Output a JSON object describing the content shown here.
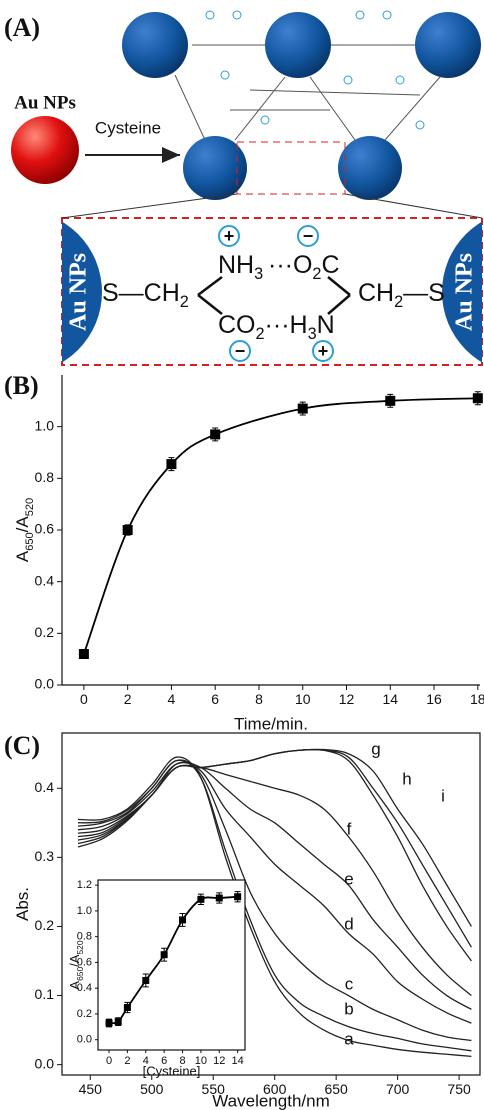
{
  "panel_a": {
    "label": "(A)",
    "reagent_label": "Au NPs",
    "arrow_label": "Cysteine",
    "inset_left_label": "Au NPs",
    "inset_right_label": "Au NPs",
    "molecule": {
      "left": [
        "S—CH",
        "2"
      ],
      "amine": [
        "NH",
        "3"
      ],
      "carboxylate_top": [
        "···O",
        "2",
        "C"
      ],
      "bottom": [
        "CO",
        "2",
        "···H",
        "3",
        "N"
      ],
      "right": [
        "CH",
        "2",
        "—S"
      ],
      "charges": [
        "+",
        "−",
        "−",
        "+"
      ]
    }
  },
  "chart_data": [
    {
      "type": "line",
      "label": "(B)",
      "xlabel": "Time/min.",
      "ylabel": [
        "A",
        "650",
        "/A",
        "520"
      ],
      "x": [
        0,
        2,
        4,
        6,
        10,
        14,
        18
      ],
      "series": [
        {
          "color": "#000000",
          "values": [
            0.12,
            0.6,
            0.855,
            0.97,
            1.07,
            1.1,
            1.11
          ],
          "errors": [
            0.015,
            0.02,
            0.025,
            0.025,
            0.025,
            0.025,
            0.025
          ]
        }
      ],
      "markers": "square",
      "box": false,
      "xlim": [
        -1,
        18.1
      ],
      "ylim": [
        0,
        1.2
      ],
      "xticks": [
        0,
        2,
        4,
        6,
        8,
        10,
        12,
        14,
        16,
        18
      ],
      "yticks": [
        {
          "value": 0,
          "label": "0.0"
        },
        0.2,
        0.4,
        0.6,
        0.8,
        {
          "value": 1,
          "label": "1.0"
        }
      ]
    },
    {
      "type": "line",
      "label": "(C)",
      "xlabel": "Wavelength/nm",
      "ylabel": [
        "Abs."
      ],
      "x": [
        440,
        460,
        480,
        500,
        520,
        540,
        560,
        580,
        600,
        620,
        640,
        660,
        680,
        700,
        720,
        740,
        760
      ],
      "series": [
        {
          "name": "a",
          "color": "#222222",
          "values": [
            0.355,
            0.355,
            0.37,
            0.405,
            0.445,
            0.415,
            0.3,
            0.2,
            0.12,
            0.075,
            0.05,
            0.035,
            0.028,
            0.022,
            0.018,
            0.015,
            0.012
          ]
        },
        {
          "name": "b",
          "color": "#222222",
          "values": [
            0.35,
            0.352,
            0.368,
            0.4,
            0.44,
            0.415,
            0.31,
            0.21,
            0.13,
            0.09,
            0.07,
            0.055,
            0.045,
            0.038,
            0.03,
            0.025,
            0.02
          ]
        },
        {
          "name": "c",
          "color": "#222222",
          "values": [
            0.345,
            0.35,
            0.365,
            0.4,
            0.44,
            0.42,
            0.34,
            0.25,
            0.19,
            0.15,
            0.12,
            0.1,
            0.08,
            0.065,
            0.05,
            0.04,
            0.035
          ]
        },
        {
          "name": "d",
          "color": "#222222",
          "values": [
            0.34,
            0.345,
            0.363,
            0.395,
            0.435,
            0.425,
            0.37,
            0.33,
            0.29,
            0.26,
            0.23,
            0.19,
            0.16,
            0.12,
            0.095,
            0.075,
            0.06
          ]
        },
        {
          "name": "e",
          "color": "#222222",
          "values": [
            0.335,
            0.34,
            0.36,
            0.39,
            0.435,
            0.43,
            0.4,
            0.37,
            0.35,
            0.32,
            0.29,
            0.26,
            0.21,
            0.17,
            0.13,
            0.1,
            0.08
          ]
        },
        {
          "name": "f",
          "color": "#222222",
          "values": [
            0.33,
            0.336,
            0.358,
            0.39,
            0.43,
            0.43,
            0.42,
            0.41,
            0.4,
            0.39,
            0.37,
            0.33,
            0.28,
            0.22,
            0.17,
            0.13,
            0.1
          ]
        },
        {
          "name": "g",
          "color": "#222222",
          "values": [
            0.325,
            0.333,
            0.356,
            0.39,
            0.43,
            0.43,
            0.435,
            0.44,
            0.45,
            0.455,
            0.455,
            0.44,
            0.39,
            0.33,
            0.26,
            0.2,
            0.15
          ]
        },
        {
          "name": "h",
          "color": "#222222",
          "values": [
            0.32,
            0.33,
            0.355,
            0.39,
            0.43,
            0.43,
            0.435,
            0.44,
            0.45,
            0.455,
            0.455,
            0.445,
            0.4,
            0.35,
            0.29,
            0.23,
            0.17
          ]
        },
        {
          "name": "i",
          "color": "#222222",
          "values": [
            0.315,
            0.327,
            0.353,
            0.39,
            0.43,
            0.43,
            0.435,
            0.44,
            0.45,
            0.455,
            0.456,
            0.45,
            0.425,
            0.37,
            0.32,
            0.26,
            0.2
          ]
        }
      ],
      "box": true,
      "xlim": [
        427,
        767
      ],
      "ylim": [
        -0.015,
        0.48
      ],
      "xticks": [
        450,
        500,
        550,
        600,
        650,
        700,
        750
      ],
      "yticks": [
        {
          "value": 0,
          "label": "0.0"
        },
        0.1,
        0.2,
        0.3,
        0.4
      ]
    },
    {
      "type": "line",
      "xlabel": "[Cysteine]",
      "ylabel": [
        "A",
        "650",
        "/A",
        "520"
      ],
      "x": [
        0,
        1,
        2,
        4,
        6,
        8,
        10,
        12,
        14
      ],
      "series": [
        {
          "color": "#000000",
          "values": [
            0.13,
            0.14,
            0.25,
            0.46,
            0.66,
            0.93,
            1.09,
            1.1,
            1.11
          ],
          "errors": [
            0.03,
            0.03,
            0.04,
            0.05,
            0.05,
            0.05,
            0.04,
            0.04,
            0.04
          ]
        }
      ],
      "markers": "square",
      "box": true,
      "xlim": [
        -1.2,
        14.8
      ],
      "ylim": [
        -0.08,
        1.24
      ],
      "xticks": [
        0,
        2,
        4,
        6,
        8,
        10,
        12,
        14
      ],
      "yticks": [
        {
          "value": 0,
          "label": "0.0"
        },
        0.2,
        0.4,
        0.6,
        0.8,
        {
          "value": 1,
          "label": "1.0"
        },
        1.2
      ]
    }
  ]
}
